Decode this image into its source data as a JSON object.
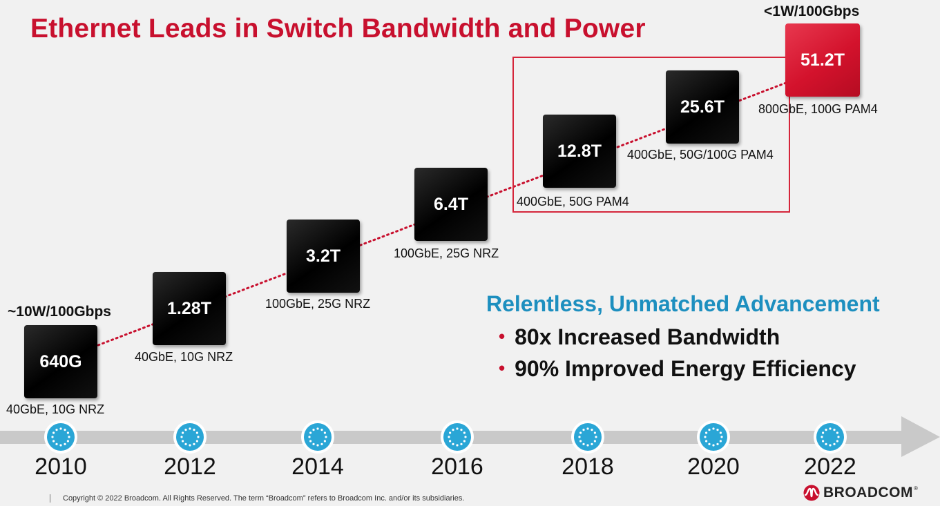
{
  "title": "Ethernet Leads in Switch Bandwidth and Power",
  "power_start": "~10W/100Gbps",
  "power_end": "<1W/100Gbps",
  "chips": [
    {
      "year": "2010",
      "label": "640G",
      "sub": "40GbE, 10G NRZ",
      "highlight": false
    },
    {
      "year": "2012",
      "label": "1.28T",
      "sub": "40GbE, 10G NRZ",
      "highlight": false
    },
    {
      "year": "2014",
      "label": "3.2T",
      "sub": "100GbE, 25G NRZ",
      "highlight": false
    },
    {
      "year": "2016",
      "label": "6.4T",
      "sub": "100GbE, 25G NRZ",
      "highlight": false
    },
    {
      "year": "2018",
      "label": "12.8T",
      "sub": "400GbE, 50G PAM4",
      "highlight": false
    },
    {
      "year": "2020",
      "label": "25.6T",
      "sub": "400GbE, 50G/100G PAM4",
      "highlight": false
    },
    {
      "year": "2022",
      "label": "51.2T",
      "sub": "800GbE, 100G PAM4",
      "highlight": true
    }
  ],
  "advancement": {
    "heading": "Relentless, Unmatched Advancement",
    "bullet": "•",
    "items": [
      "80x Increased Bandwidth",
      "90% Improved Energy Efficiency"
    ]
  },
  "timeline_years": [
    "2010",
    "2012",
    "2014",
    "2016",
    "2018",
    "2020",
    "2022"
  ],
  "footer": {
    "separator": "|",
    "copyright": "Copyright © 2022 Broadcom.  All Rights Reserved. The term “Broadcom” refers to Broadcom Inc. and/or its subsidiaries.",
    "logo_text": "BROADCOM",
    "logo_mark": "®"
  },
  "colors": {
    "title_red": "#c8102e",
    "accent_blue": "#1d8fbf",
    "timeline_gray": "#c9c9c9",
    "node_blue": "#2aa6d6"
  }
}
